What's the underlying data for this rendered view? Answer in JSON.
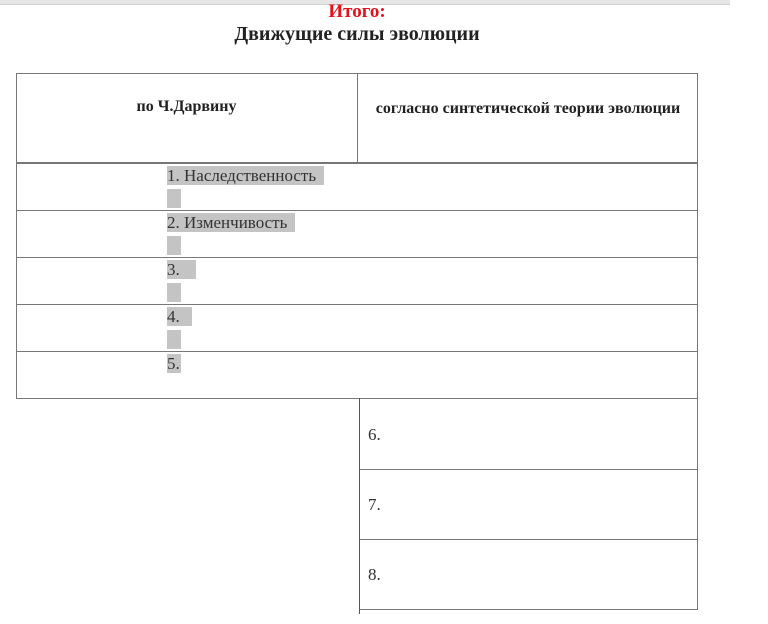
{
  "title": "Итого:",
  "subtitle": "Движущие силы эволюции",
  "table": {
    "headers": [
      "по Ч.Дарвину",
      "согласно синтетической теории эволюции"
    ],
    "darwin_items": [
      "1. Наследственность",
      "2. Изменчивость",
      "3.",
      "4.",
      "5."
    ],
    "synthetic_items": [
      "6.",
      "7.",
      "8."
    ]
  }
}
